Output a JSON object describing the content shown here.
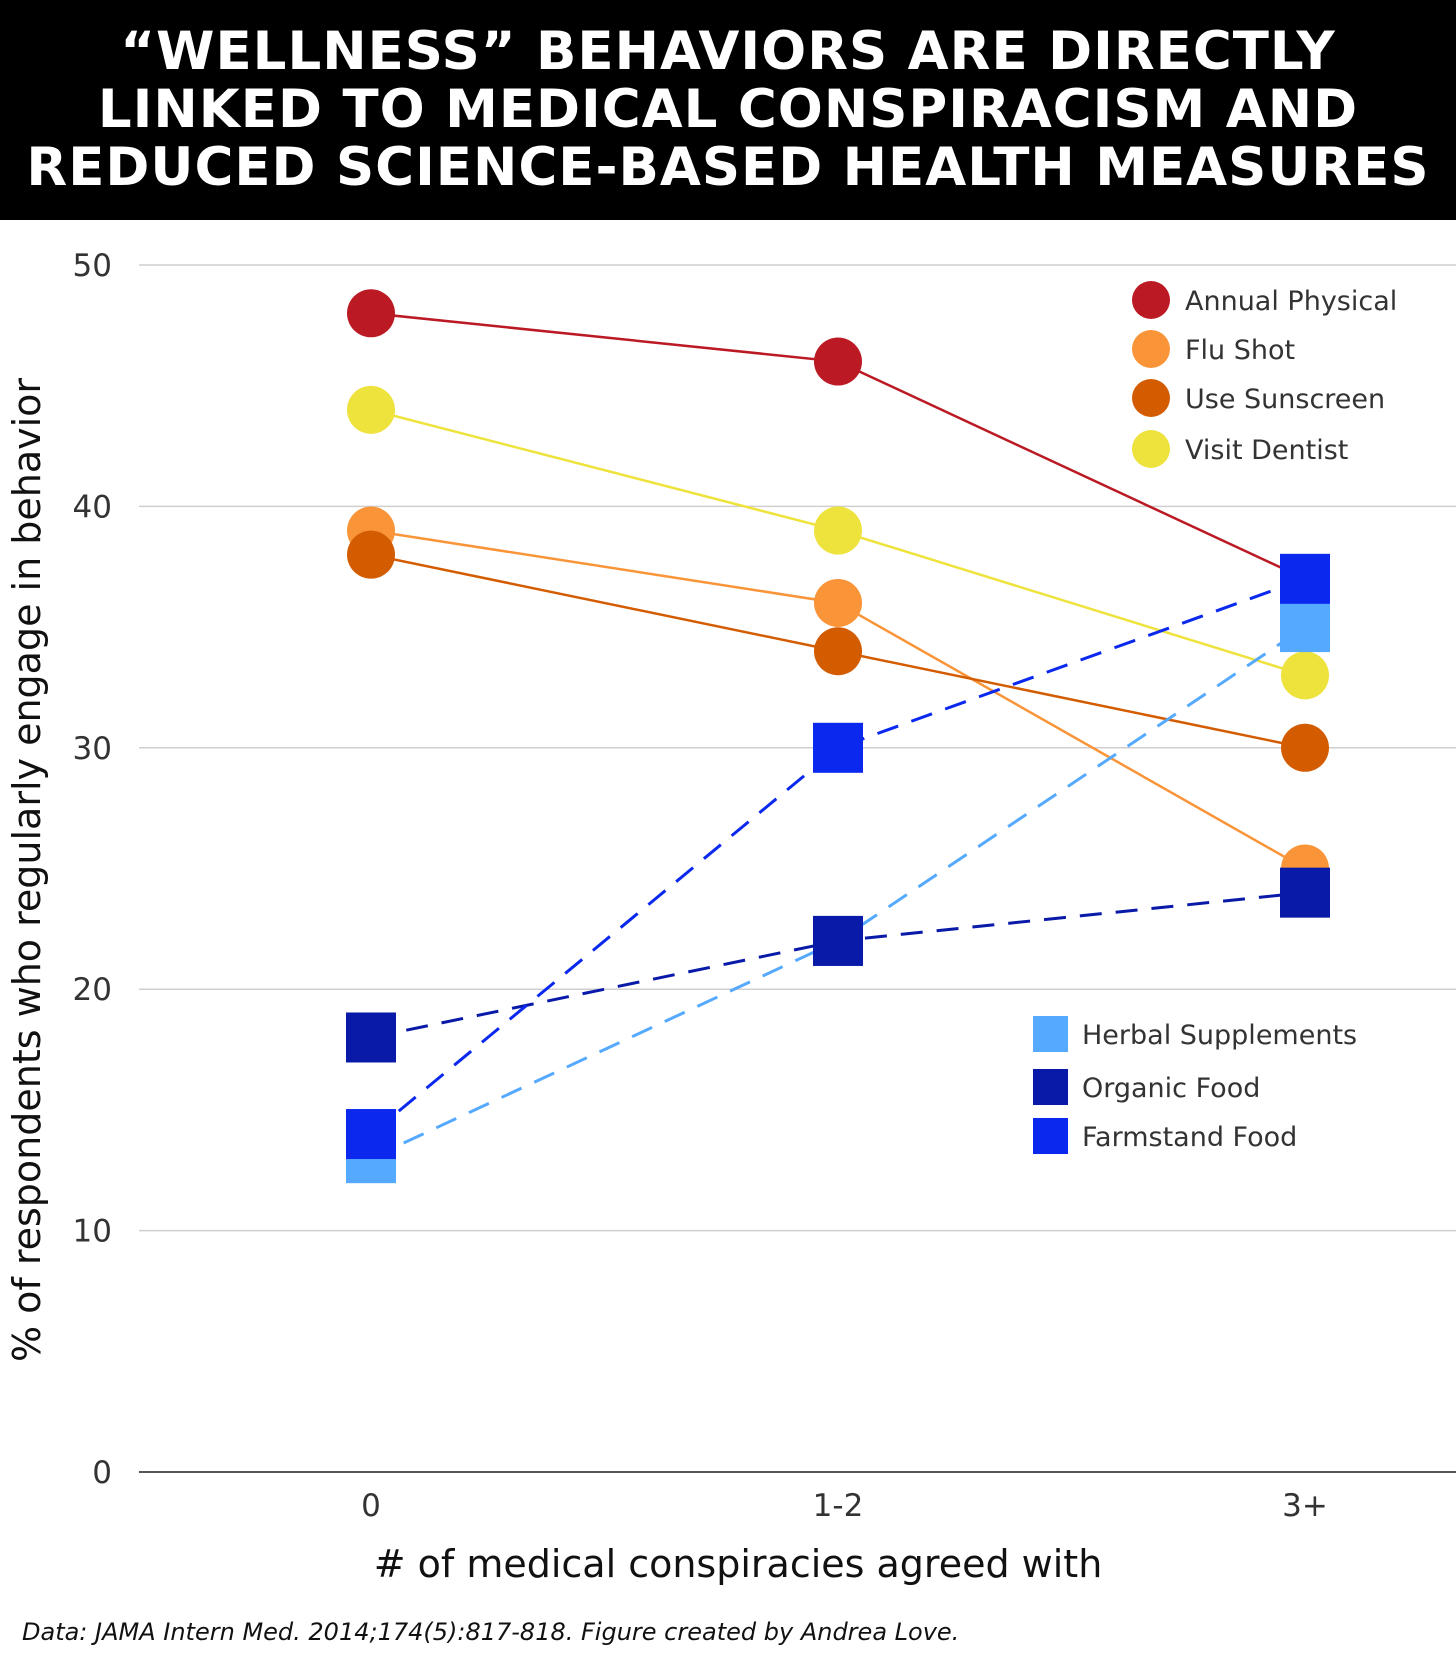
{
  "title_lines": [
    "“WELLNESS” BEHAVIORS ARE DIRECTLY",
    "LINKED TO MEDICAL CONSPIRACISM AND",
    "REDUCED SCIENCE-BASED HEALTH MEASURES"
  ],
  "footer": "Data: JAMA Intern Med. 2014;174(5):817-818. Figure created by Andrea Love.",
  "chart_data": {
    "type": "line",
    "title": "“WELLNESS” BEHAVIORS ARE DIRECTLY LINKED TO MEDICAL CONSPIRACISM AND REDUCED SCIENCE-BASED HEALTH MEASURES",
    "xlabel": "# of medical conspiracies agreed with",
    "ylabel": "% of respondents who regularly engage in behavior",
    "categories": [
      "0",
      "1-2",
      "3+"
    ],
    "ylim": [
      0,
      50
    ],
    "yticks": [
      "0",
      "10",
      "20",
      "30",
      "40",
      "50"
    ],
    "grid": true,
    "series": [
      {
        "name": "Annual Physical",
        "values": [
          48,
          46,
          37
        ],
        "color": "#bb1a24",
        "marker": "circle",
        "dash": false
      },
      {
        "name": "Flu Shot",
        "values": [
          39,
          36,
          25
        ],
        "color": "#fa9438",
        "marker": "circle",
        "dash": false
      },
      {
        "name": "Use Sunscreen",
        "values": [
          38,
          34,
          30
        ],
        "color": "#d45c00",
        "marker": "circle",
        "dash": false
      },
      {
        "name": "Visit Dentist",
        "values": [
          44,
          39,
          33
        ],
        "color": "#eee23c",
        "marker": "circle",
        "dash": false
      },
      {
        "name": "Herbal Supplements",
        "values": [
          13,
          22,
          35
        ],
        "color": "#55aaff",
        "marker": "square",
        "dash": true
      },
      {
        "name": "Organic Food",
        "values": [
          18,
          22,
          24
        ],
        "color": "#0a1aa8",
        "marker": "square",
        "dash": true
      },
      {
        "name": "Farmstand Food",
        "values": [
          14,
          30,
          37
        ],
        "color": "#0a28ee",
        "marker": "square",
        "dash": true
      }
    ],
    "legend_placement": "top-right (circles), middle-right (squares)"
  }
}
